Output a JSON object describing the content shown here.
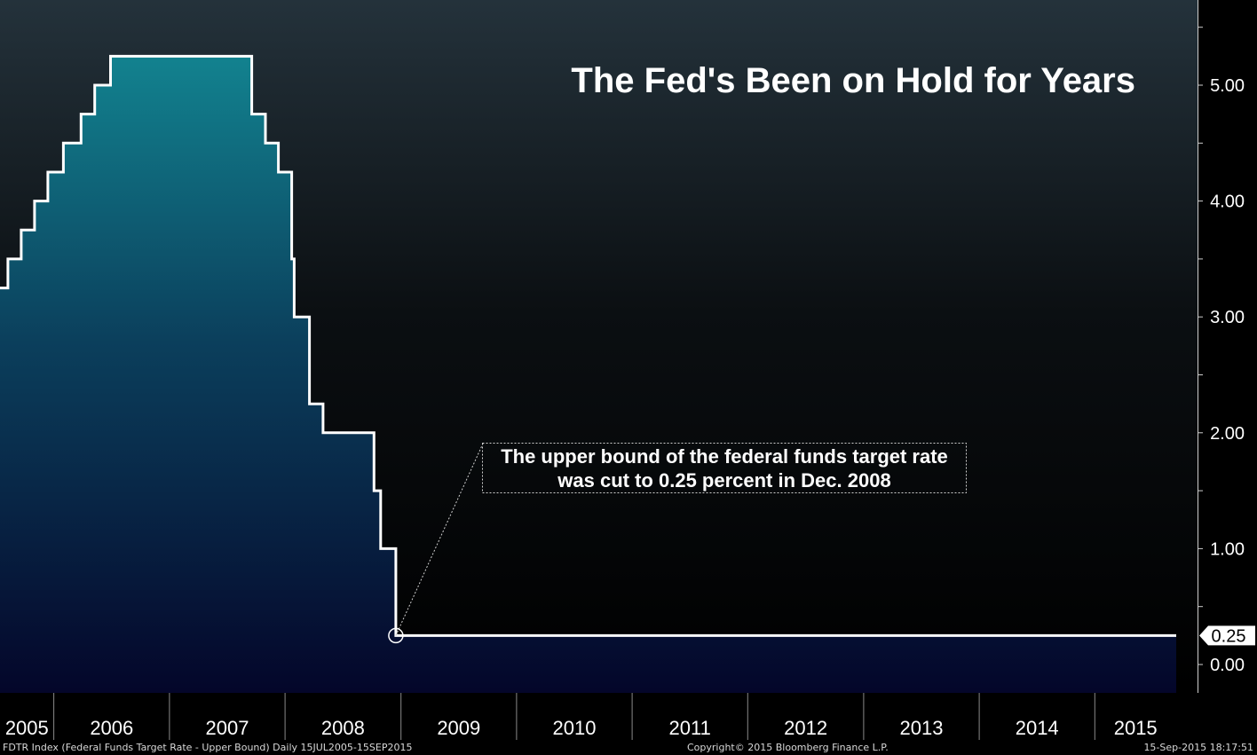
{
  "chart_data": {
    "type": "area",
    "title": "The Fed's Been on Hold for Years",
    "ylim": [
      0,
      5.5
    ],
    "y_ticks": [
      0,
      1,
      2,
      3,
      4,
      5
    ],
    "y_tick_labels": [
      "0.00",
      "1.00",
      "2.00",
      "3.00",
      "4.00",
      "5.00"
    ],
    "x_tick_labels": [
      "2005",
      "2006",
      "2007",
      "2008",
      "2009",
      "2010",
      "2011",
      "2012",
      "2013",
      "2014",
      "2015"
    ],
    "x_start": "2005-07-15",
    "x_end": "2015-09-15",
    "grid": false,
    "series": [
      {
        "dates": [
          "2005-07-15",
          "2005-08-09",
          "2005-09-20",
          "2005-11-01",
          "2005-12-13",
          "2006-01-31",
          "2006-03-28",
          "2006-05-10",
          "2006-06-29",
          "2007-09-18",
          "2007-10-31",
          "2007-12-11",
          "2008-01-22",
          "2008-01-30",
          "2008-03-18",
          "2008-04-30",
          "2008-10-08",
          "2008-10-29",
          "2008-12-16",
          "2015-09-15"
        ],
        "values": [
          3.25,
          3.5,
          3.75,
          4.0,
          4.25,
          4.5,
          4.75,
          5.0,
          5.25,
          4.75,
          4.5,
          4.25,
          3.5,
          3.0,
          2.25,
          2.0,
          1.5,
          1.0,
          0.25,
          0.25
        ]
      }
    ],
    "last_value_label": "0.25",
    "annotation": {
      "text_line1": "The upper bound of the federal funds target rate",
      "text_line2": "was cut to 0.25 percent in Dec. 2008",
      "point_date": "2008-12-16",
      "point_value": 0.25
    }
  },
  "footer": {
    "left": "FDTR Index (Federal Funds Target Rate - Upper Bound)  Daily 15JUL2005-15SEP2015",
    "center": "Copyright© 2015 Bloomberg Finance L.P.",
    "right": "15-Sep-2015 18:17:51"
  },
  "colors": {
    "bg_top": "#24323b",
    "bg_bottom": "#000000",
    "fill_top": "#12828f",
    "fill_bottom": "#04062a",
    "line": "#ffffff",
    "text": "#ffffff"
  }
}
